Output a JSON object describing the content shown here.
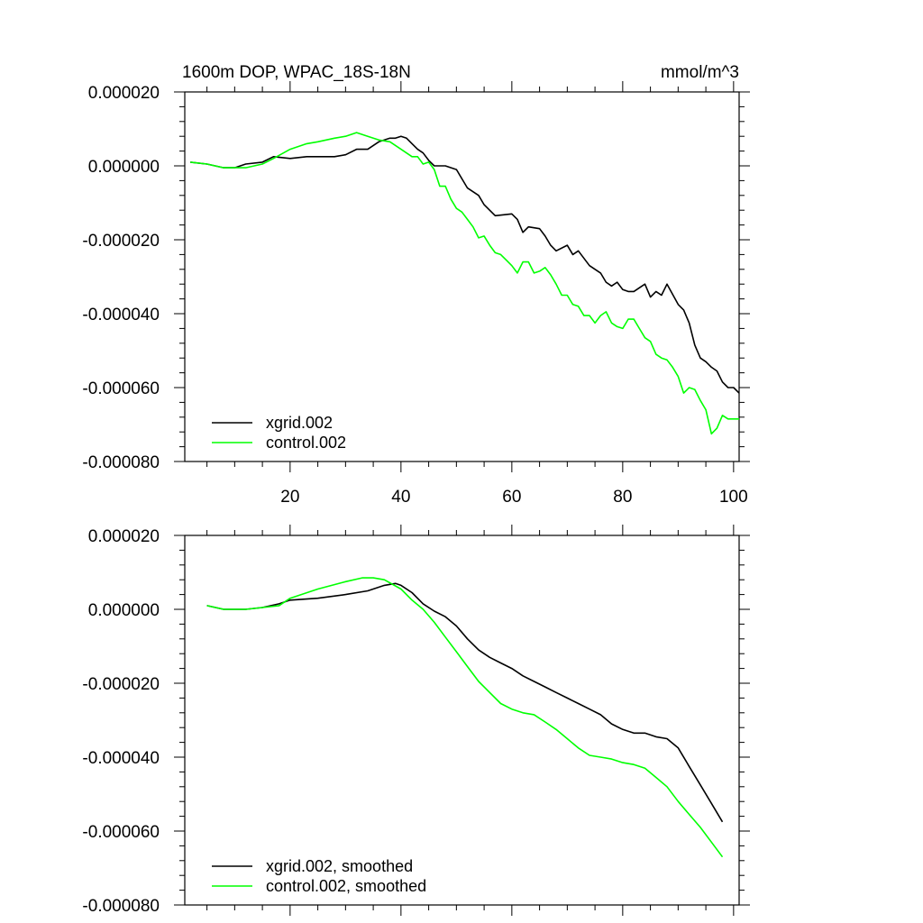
{
  "chart_data": [
    {
      "type": "line",
      "title": "1600m DOP, WPAC_18S-18N",
      "units": "mmol/m^3",
      "xlim": [
        1,
        101
      ],
      "ylim": [
        -8e-05,
        2e-05
      ],
      "xticks": [
        20,
        40,
        60,
        80,
        100
      ],
      "xtick_labels": [
        "20",
        "40",
        "60",
        "80",
        "100"
      ],
      "yticks": [
        2e-05,
        0,
        -2e-05,
        -4e-05,
        -6e-05,
        -8e-05
      ],
      "ytick_labels": [
        "0.000020",
        "0.000000",
        "-0.000020",
        "-0.000040",
        "-0.000060",
        "-0.000080"
      ],
      "legend_location": "bottom-left",
      "series": [
        {
          "name": "xgrid.002",
          "color": "#000000",
          "x": [
            2,
            5,
            8,
            10,
            12,
            15,
            17,
            20,
            23,
            25,
            28,
            30,
            32,
            34,
            36,
            38,
            39,
            40,
            41,
            42,
            43,
            44,
            45,
            46,
            48,
            50,
            52,
            53,
            54,
            55,
            57,
            60,
            61,
            62,
            63,
            65,
            66,
            67,
            68,
            70,
            71,
            72,
            74,
            76,
            77,
            78,
            79,
            80,
            81,
            82,
            83,
            84,
            85,
            86,
            87,
            88,
            90,
            91,
            92,
            93,
            94,
            95,
            96,
            97,
            98,
            99,
            100,
            101
          ],
          "values": [
            1e-06,
            5e-07,
            -5e-07,
            -5e-07,
            5e-07,
            1e-06,
            2.5e-06,
            2e-06,
            2.5e-06,
            2.5e-06,
            2.5e-06,
            3e-06,
            4.5e-06,
            4.5e-06,
            6.5e-06,
            7.5e-06,
            7.5e-06,
            8e-06,
            7.5e-06,
            6e-06,
            4.5e-06,
            3.5e-06,
            1.5e-06,
            0,
            0,
            -1e-06,
            -6e-06,
            -7e-06,
            -8e-06,
            -1.05e-05,
            -1.35e-05,
            -1.3e-05,
            -1.45e-05,
            -1.8e-05,
            -1.65e-05,
            -1.7e-05,
            -1.9e-05,
            -2.15e-05,
            -2.3e-05,
            -2.15e-05,
            -2.4e-05,
            -2.3e-05,
            -2.7e-05,
            -2.9e-05,
            -3.15e-05,
            -3.25e-05,
            -3.15e-05,
            -3.35e-05,
            -3.4e-05,
            -3.4e-05,
            -3.3e-05,
            -3.2e-05,
            -3.55e-05,
            -3.4e-05,
            -3.5e-05,
            -3.2e-05,
            -3.75e-05,
            -3.9e-05,
            -4.25e-05,
            -4.85e-05,
            -5.2e-05,
            -5.3e-05,
            -5.45e-05,
            -5.55e-05,
            -5.85e-05,
            -6e-05,
            -6e-05,
            -6.15e-05
          ]
        },
        {
          "name": "control.002",
          "color": "#00ff00",
          "x": [
            2,
            5,
            8,
            10,
            12,
            15,
            17,
            20,
            23,
            25,
            28,
            30,
            32,
            34,
            36,
            38,
            40,
            42,
            43,
            44,
            45,
            46,
            47,
            48,
            49,
            50,
            51,
            52,
            53,
            54,
            55,
            56,
            57,
            58,
            59,
            60,
            61,
            62,
            63,
            64,
            65,
            66,
            67,
            68,
            69,
            70,
            71,
            72,
            73,
            74,
            75,
            76,
            77,
            78,
            79,
            80,
            81,
            82,
            83,
            84,
            85,
            86,
            87,
            88,
            89,
            90,
            91,
            92,
            93,
            94,
            95,
            96,
            97,
            98,
            99,
            100,
            101
          ],
          "values": [
            1e-06,
            5e-07,
            -5e-07,
            -5e-07,
            -5e-07,
            5e-07,
            2e-06,
            4.5e-06,
            6e-06,
            6.5e-06,
            7.5e-06,
            8e-06,
            9e-06,
            8e-06,
            7e-06,
            6.5e-06,
            4.5e-06,
            2.5e-06,
            2.5e-06,
            5e-07,
            1e-06,
            -1e-06,
            -5.5e-06,
            -5.5e-06,
            -9e-06,
            -1.15e-05,
            -1.25e-05,
            -1.45e-05,
            -1.65e-05,
            -1.95e-05,
            -1.9e-05,
            -2.15e-05,
            -2.35e-05,
            -2.4e-05,
            -2.55e-05,
            -2.7e-05,
            -2.9e-05,
            -2.6e-05,
            -2.6e-05,
            -2.9e-05,
            -2.85e-05,
            -2.75e-05,
            -2.95e-05,
            -3.2e-05,
            -3.5e-05,
            -3.5e-05,
            -3.75e-05,
            -3.8e-05,
            -4.05e-05,
            -4.05e-05,
            -4.25e-05,
            -4.05e-05,
            -3.95e-05,
            -4.25e-05,
            -4.35e-05,
            -4.4e-05,
            -4.15e-05,
            -4.15e-05,
            -4.4e-05,
            -4.65e-05,
            -4.75e-05,
            -5.1e-05,
            -5.2e-05,
            -5.25e-05,
            -5.45e-05,
            -5.7e-05,
            -6.15e-05,
            -6e-05,
            -6.05e-05,
            -6.35e-05,
            -6.6e-05,
            -7.25e-05,
            -7.1e-05,
            -6.75e-05,
            -6.85e-05,
            -6.85e-05,
            -6.85e-05
          ]
        }
      ]
    },
    {
      "type": "line",
      "title": "",
      "xlim": [
        1,
        101
      ],
      "ylim": [
        -8e-05,
        2e-05
      ],
      "xticks": [
        20,
        40,
        60,
        80,
        100
      ],
      "xtick_labels": [],
      "yticks": [
        2e-05,
        0,
        -2e-05,
        -4e-05,
        -6e-05,
        -8e-05
      ],
      "ytick_labels": [
        "0.000020",
        "0.000000",
        "-0.000020",
        "-0.000040",
        "-0.000060",
        "-0.000080"
      ],
      "legend_location": "bottom-left",
      "series": [
        {
          "name": "xgrid.002, smoothed",
          "color": "#000000",
          "x": [
            5,
            8,
            12,
            15,
            18,
            20,
            25,
            30,
            34,
            37,
            39,
            40,
            42,
            44,
            46,
            48,
            50,
            52,
            54,
            56,
            58,
            60,
            62,
            64,
            66,
            68,
            70,
            72,
            74,
            76,
            78,
            80,
            82,
            84,
            86,
            88,
            90,
            92,
            94,
            96,
            98
          ],
          "values": [
            1e-06,
            0,
            0,
            5e-07,
            1.5e-06,
            2.5e-06,
            3e-06,
            4e-06,
            5e-06,
            6.5e-06,
            7e-06,
            6.5e-06,
            4.5e-06,
            1.5e-06,
            -5e-07,
            -2e-06,
            -4.5e-06,
            -8e-06,
            -1.1e-05,
            -1.3e-05,
            -1.45e-05,
            -1.6e-05,
            -1.8e-05,
            -1.95e-05,
            -2.1e-05,
            -2.25e-05,
            -2.4e-05,
            -2.55e-05,
            -2.7e-05,
            -2.85e-05,
            -3.1e-05,
            -3.25e-05,
            -3.35e-05,
            -3.35e-05,
            -3.45e-05,
            -3.5e-05,
            -3.75e-05,
            -4.25e-05,
            -4.75e-05,
            -5.25e-05,
            -5.75e-05
          ]
        },
        {
          "name": "control.002, smoothed",
          "color": "#00ff00",
          "x": [
            5,
            8,
            12,
            15,
            18,
            20,
            25,
            30,
            33,
            35,
            37,
            40,
            42,
            44,
            46,
            48,
            50,
            52,
            54,
            56,
            58,
            60,
            62,
            64,
            66,
            68,
            70,
            72,
            74,
            76,
            78,
            80,
            82,
            84,
            86,
            88,
            90,
            92,
            94,
            96,
            98
          ],
          "values": [
            1e-06,
            0,
            0,
            5e-07,
            1e-06,
            3e-06,
            5.5e-06,
            7.5e-06,
            8.5e-06,
            8.5e-06,
            8e-06,
            5.5e-06,
            2.5e-06,
            0,
            -3.5e-06,
            -7.5e-06,
            -1.15e-05,
            -1.55e-05,
            -1.95e-05,
            -2.25e-05,
            -2.55e-05,
            -2.7e-05,
            -2.8e-05,
            -2.85e-05,
            -3.05e-05,
            -3.25e-05,
            -3.5e-05,
            -3.75e-05,
            -3.95e-05,
            -4e-05,
            -4.05e-05,
            -4.15e-05,
            -4.2e-05,
            -4.3e-05,
            -4.55e-05,
            -4.8e-05,
            -5.2e-05,
            -5.55e-05,
            -5.9e-05,
            -6.3e-05,
            -6.7e-05
          ]
        }
      ]
    }
  ]
}
